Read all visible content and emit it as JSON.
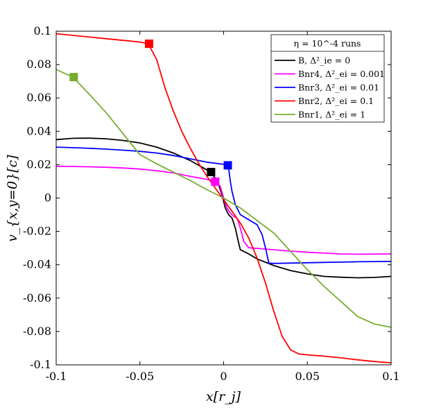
{
  "chart_data": {
    "type": "line",
    "title": "",
    "xlabel": "x[r_j]",
    "ylabel": "v_{x,y=0}[c]",
    "xlim": [
      -0.1,
      0.1
    ],
    "ylim": [
      -0.1,
      0.1
    ],
    "grid": false,
    "legend_position": "top-right",
    "legend_title": "η = 10^-4 runs",
    "x_ticks": [
      -0.1,
      -0.05,
      0,
      0.05,
      0.1
    ],
    "x_tick_labels": [
      "-0.1",
      "-0.05",
      "0",
      "0.05",
      "0.1"
    ],
    "y_ticks": [
      0.1,
      0.08,
      0.06,
      0.04,
      0.02,
      0,
      -0.02,
      -0.04,
      -0.06,
      -0.08,
      -0.1
    ],
    "y_tick_labels": [
      "0.1",
      "0.08",
      "0.06",
      "0.04",
      "0.02",
      "0",
      "-0.02",
      "-0.04",
      "-0.06",
      "-0.08",
      "-0.1"
    ],
    "series": [
      {
        "name": "B, Δ²_ie = 0",
        "color": "#000000",
        "x": [
          -0.1,
          -0.09,
          -0.08,
          -0.07,
          -0.06,
          -0.05,
          -0.04,
          -0.03,
          -0.02,
          -0.012,
          -0.008,
          -0.005,
          -0.003,
          -0.001,
          0.001,
          0.003,
          0.005,
          0.007,
          0.009,
          0.01,
          0.015,
          0.02,
          0.03,
          0.04,
          0.05,
          0.06,
          0.07,
          0.08,
          0.09,
          0.1
        ],
        "y": [
          0.035,
          0.0358,
          0.0359,
          0.0355,
          0.0345,
          0.033,
          0.0305,
          0.027,
          0.0225,
          0.018,
          0.0155,
          0.012,
          0.008,
          0.002,
          -0.006,
          -0.01,
          -0.012,
          -0.018,
          -0.027,
          -0.031,
          -0.0335,
          -0.0365,
          -0.0405,
          -0.0435,
          -0.0455,
          -0.047,
          -0.0475,
          -0.0478,
          -0.0476,
          -0.047
        ],
        "marker": {
          "x": -0.0075,
          "y": 0.0156
        }
      },
      {
        "name": "Bnr4, Δ²_ei = 0.001",
        "color": "#ff00ff",
        "x": [
          -0.1,
          -0.09,
          -0.08,
          -0.07,
          -0.06,
          -0.05,
          -0.04,
          -0.03,
          -0.02,
          -0.01,
          -0.005,
          -0.002,
          0.0,
          0.002,
          0.004,
          0.006,
          0.008,
          0.01,
          0.012,
          0.015,
          0.02,
          0.03,
          0.04,
          0.05,
          0.06,
          0.07,
          0.08,
          0.09,
          0.1
        ],
        "y": [
          0.019,
          0.0189,
          0.0187,
          0.0184,
          0.018,
          0.0174,
          0.0164,
          0.015,
          0.013,
          0.0112,
          0.0102,
          0.007,
          0.0,
          -0.006,
          -0.009,
          -0.011,
          -0.012,
          -0.018,
          -0.026,
          -0.0298,
          -0.0302,
          -0.031,
          -0.0318,
          -0.0325,
          -0.033,
          -0.0335,
          -0.0337,
          -0.0336,
          -0.0335
        ],
        "marker": {
          "x": -0.005,
          "y": 0.0098
        }
      },
      {
        "name": "Bnr3, Δ²_ei = 0.01",
        "color": "#0000ff",
        "x": [
          -0.1,
          -0.09,
          -0.08,
          -0.07,
          -0.06,
          -0.05,
          -0.04,
          -0.03,
          -0.02,
          -0.01,
          0.0,
          0.002,
          0.003,
          0.004,
          0.005,
          0.007,
          0.01,
          0.015,
          0.02,
          0.023,
          0.025,
          0.027,
          0.03,
          0.04,
          0.05,
          0.06,
          0.07,
          0.08,
          0.09,
          0.1
        ],
        "y": [
          0.0305,
          0.0302,
          0.0298,
          0.0293,
          0.0287,
          0.028,
          0.027,
          0.0255,
          0.0235,
          0.0215,
          0.0202,
          0.0196,
          0.018,
          0.01,
          0.004,
          -0.004,
          -0.01,
          -0.013,
          -0.016,
          -0.022,
          -0.03,
          -0.039,
          -0.0392,
          -0.039,
          -0.0388,
          -0.0386,
          -0.0384,
          -0.0382,
          -0.0381,
          -0.038
        ],
        "marker": {
          "x": 0.0025,
          "y": 0.0196
        }
      },
      {
        "name": "Bnr2, Δ²_ei = 0.1",
        "color": "#ff0000",
        "x": [
          -0.1,
          -0.09,
          -0.08,
          -0.07,
          -0.06,
          -0.05,
          -0.045,
          -0.04,
          -0.035,
          -0.03,
          -0.025,
          -0.02,
          -0.015,
          -0.01,
          -0.005,
          0.0,
          0.005,
          0.01,
          0.015,
          0.02,
          0.025,
          0.03,
          0.035,
          0.04,
          0.045,
          0.05,
          0.06,
          0.07,
          0.08,
          0.09,
          0.1
        ],
        "y": [
          0.0985,
          0.0975,
          0.0965,
          0.0955,
          0.0945,
          0.0935,
          0.0925,
          0.083,
          0.066,
          0.052,
          0.04,
          0.03,
          0.021,
          0.013,
          0.006,
          -0.001,
          -0.008,
          -0.015,
          -0.024,
          -0.036,
          -0.051,
          -0.068,
          -0.083,
          -0.091,
          -0.0935,
          -0.094,
          -0.0948,
          -0.0958,
          -0.097,
          -0.098,
          -0.0988
        ],
        "marker": {
          "x": -0.0445,
          "y": 0.0925
        }
      },
      {
        "name": "Bnr1, Δ²_ei = 1",
        "color": "#77ac30",
        "x": [
          -0.1,
          -0.09,
          -0.08,
          -0.07,
          -0.06,
          -0.05,
          -0.04,
          -0.03,
          -0.02,
          -0.01,
          0.0,
          0.01,
          0.02,
          0.03,
          0.04,
          0.05,
          0.06,
          0.07,
          0.08,
          0.09,
          0.1
        ],
        "y": [
          0.077,
          0.0725,
          0.062,
          0.051,
          0.0385,
          0.026,
          0.0205,
          0.0155,
          0.0105,
          0.005,
          0.0,
          -0.006,
          -0.0135,
          -0.021,
          -0.032,
          -0.043,
          -0.053,
          -0.062,
          -0.071,
          -0.0755,
          -0.0775
        ],
        "marker": {
          "x": -0.0895,
          "y": 0.0725
        }
      }
    ]
  },
  "colors": {
    "axis": "#000000",
    "background": "#ffffff"
  }
}
